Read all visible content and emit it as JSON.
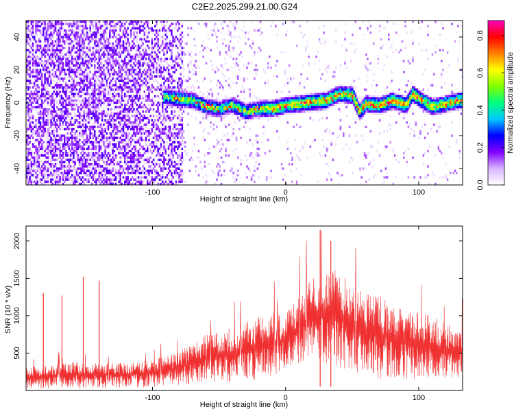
{
  "title": "C2E2.2025.299.21.00.G24",
  "chart_data": [
    {
      "type": "heatmap",
      "xlabel": "Height of straight line (km)",
      "ylabel": "Frequency (Hz)",
      "xlim": [
        -195,
        133
      ],
      "ylim": [
        -50,
        50
      ],
      "xticks": [
        -100,
        0,
        100
      ],
      "yticks": [
        -40,
        -20,
        0,
        20,
        40
      ],
      "colorbar": {
        "label": "Normalized spectral amplitude",
        "range": [
          0,
          0.88
        ],
        "ticks": [
          "0.0",
          "0.2",
          "0.4",
          "0.6",
          "0.8"
        ],
        "tick_values": [
          0,
          0.2,
          0.4,
          0.6,
          0.8
        ],
        "colors": [
          "#ffffff",
          "#d9b3ff",
          "#8000ff",
          "#0000ff",
          "#00c8ff",
          "#00ff80",
          "#80ff00",
          "#ffff00",
          "#ff8000",
          "#ff0000",
          "#ff00c0"
        ]
      },
      "ridge": {
        "x": [
          -90,
          -80,
          -70,
          -60,
          -50,
          -40,
          -30,
          -20,
          -10,
          0,
          10,
          20,
          30,
          40,
          50,
          55,
          60,
          70,
          80,
          90,
          95,
          100,
          110,
          120,
          130
        ],
        "frequency": [
          4,
          3,
          2,
          -2,
          -3,
          -1,
          -5,
          -3,
          -3,
          -1,
          0,
          1,
          2,
          6,
          5,
          -5,
          0,
          -1,
          2,
          -1,
          6,
          3,
          -2,
          0,
          2
        ]
      }
    },
    {
      "type": "line",
      "xlabel": "Height of straight line (km)",
      "ylabel": "SNR (10 * v/v)",
      "xlim": [
        -195,
        133
      ],
      "ylim": [
        0,
        2200
      ],
      "xticks": [
        -100,
        0,
        100
      ],
      "yticks": [
        500,
        1000,
        1500,
        2000
      ],
      "series": [
        {
          "color": "#f03030",
          "envelope_x": [
            -195,
            -180,
            -160,
            -140,
            -120,
            -100,
            -80,
            -60,
            -40,
            -20,
            0,
            10,
            20,
            30,
            40,
            50,
            60,
            70,
            80,
            90,
            100,
            110,
            120,
            133
          ],
          "upper": [
            300,
            350,
            380,
            380,
            380,
            420,
            520,
            750,
            850,
            1000,
            1050,
            1300,
            1500,
            1650,
            1700,
            1400,
            1300,
            1300,
            1200,
            1100,
            1050,
            1000,
            900,
            850
          ],
          "lower": [
            10,
            20,
            20,
            30,
            30,
            40,
            60,
            90,
            120,
            150,
            250,
            350,
            400,
            350,
            300,
            250,
            200,
            150,
            150,
            150,
            150,
            150,
            150,
            150
          ],
          "spikes": [
            {
              "x": -182,
              "y": 1300
            },
            {
              "x": -168,
              "y": 1270
            },
            {
              "x": -152,
              "y": 1520
            },
            {
              "x": -140,
              "y": 1470
            },
            {
              "x": 26,
              "y": 2150
            },
            {
              "x": 34,
              "y": 2000
            }
          ]
        }
      ]
    }
  ]
}
